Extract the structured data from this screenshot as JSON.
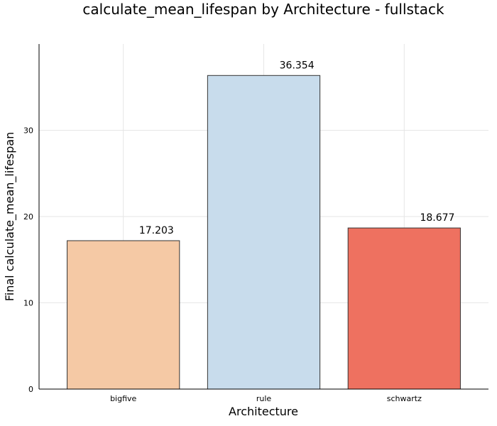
{
  "chart_data": {
    "type": "bar",
    "title": "calculate_mean_lifespan by Architecture - fullstack",
    "xlabel": "Architecture",
    "ylabel": "Final calculate_mean_lifespan",
    "categories": [
      "bigfive",
      "rule",
      "schwartz"
    ],
    "values": [
      17.203,
      36.354,
      18.677
    ],
    "data_labels": [
      "17.203",
      "36.354",
      "18.677"
    ],
    "colors": [
      "#f5c9a5",
      "#c8dcec",
      "#ee7160"
    ],
    "ylim": [
      0,
      40
    ],
    "yticks": [
      0,
      10,
      20,
      30
    ],
    "ytick_labels": [
      "0",
      "10",
      "20",
      "30"
    ],
    "grid": true,
    "legend": "none"
  }
}
